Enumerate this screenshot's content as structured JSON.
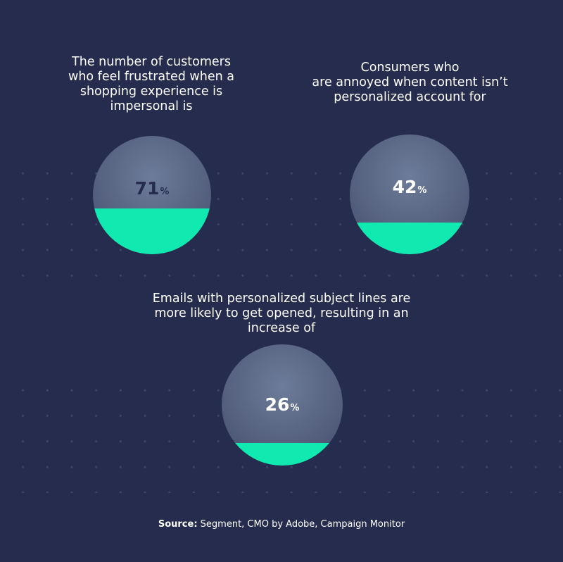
{
  "colors": {
    "background": "#262c4d",
    "accent_fill": "#10eab0",
    "circle_base": "#56627f",
    "dots": "#3e4668"
  },
  "chart_data": [
    {
      "type": "pie",
      "title": "The number of customers\nwho feel frustrated when a\nshopping experience is\nimpersonal is",
      "value": 71,
      "value_label": "71",
      "unit": "%"
    },
    {
      "type": "pie",
      "title": "Consumers who\nare annoyed when content isn’t\npersonalized account for",
      "value": 42,
      "value_label": "42",
      "unit": "%"
    },
    {
      "type": "pie",
      "title": "Emails with personalized subject lines are\nmore likely to get opened, resulting in an\nincrease of",
      "value": 26,
      "value_label": "26",
      "unit": "%"
    }
  ],
  "source": {
    "label": "Source:",
    "text": " Segment, CMO by Adobe, Campaign Monitor"
  }
}
